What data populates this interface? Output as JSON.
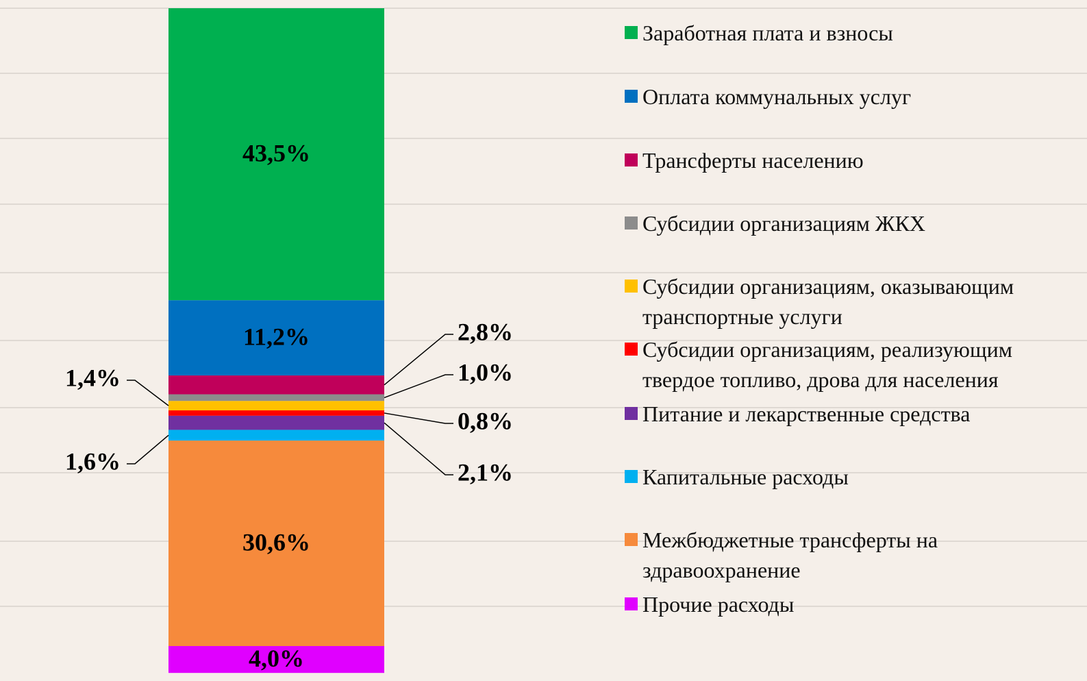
{
  "chart_data": {
    "type": "stacked_bar",
    "categories": [
      null
    ],
    "series": [
      {
        "name": "Заработная плата и взносы",
        "color": "#00b050",
        "values": [
          43.5
        ],
        "value_labels": [
          "43,5%"
        ]
      },
      {
        "name": "Оплата коммунальных услуг",
        "color": "#0070c0",
        "values": [
          11.2
        ],
        "value_labels": [
          "11,2%"
        ]
      },
      {
        "name": "Трансферты населению",
        "color": "#c0005a",
        "values": [
          2.8
        ],
        "value_labels": [
          "2,8%"
        ]
      },
      {
        "name": "Субсидии организациям ЖКХ",
        "color": "#8c8c8c",
        "values": [
          1.0
        ],
        "value_labels": [
          "1,0%"
        ]
      },
      {
        "name": "Субсидии организациям, оказывающим транспортные услуги",
        "color": "#ffc000",
        "values": [
          1.4
        ],
        "value_labels": [
          "1,4%"
        ]
      },
      {
        "name": "Субсидии организациям, реализующим твердое топливо, дрова для населения",
        "color": "#ff0000",
        "values": [
          0.8
        ],
        "value_labels": [
          "0,8%"
        ]
      },
      {
        "name": "Питание и лекарственные средства",
        "color": "#7030a0",
        "values": [
          2.1
        ],
        "value_labels": [
          "2,1%"
        ]
      },
      {
        "name": "Капитальные расходы",
        "color": "#00b0f0",
        "values": [
          1.6
        ],
        "value_labels": [
          "1,6%"
        ]
      },
      {
        "name": "Межбюджетные трансферты на здравоохранение",
        "color": "#f68a3c",
        "values": [
          30.6
        ],
        "value_labels": [
          "30,6%"
        ]
      },
      {
        "name": "Прочие расходы",
        "color": "#e000ff",
        "values": [
          4.0
        ],
        "value_labels": [
          "4,0%"
        ]
      }
    ]
  }
}
